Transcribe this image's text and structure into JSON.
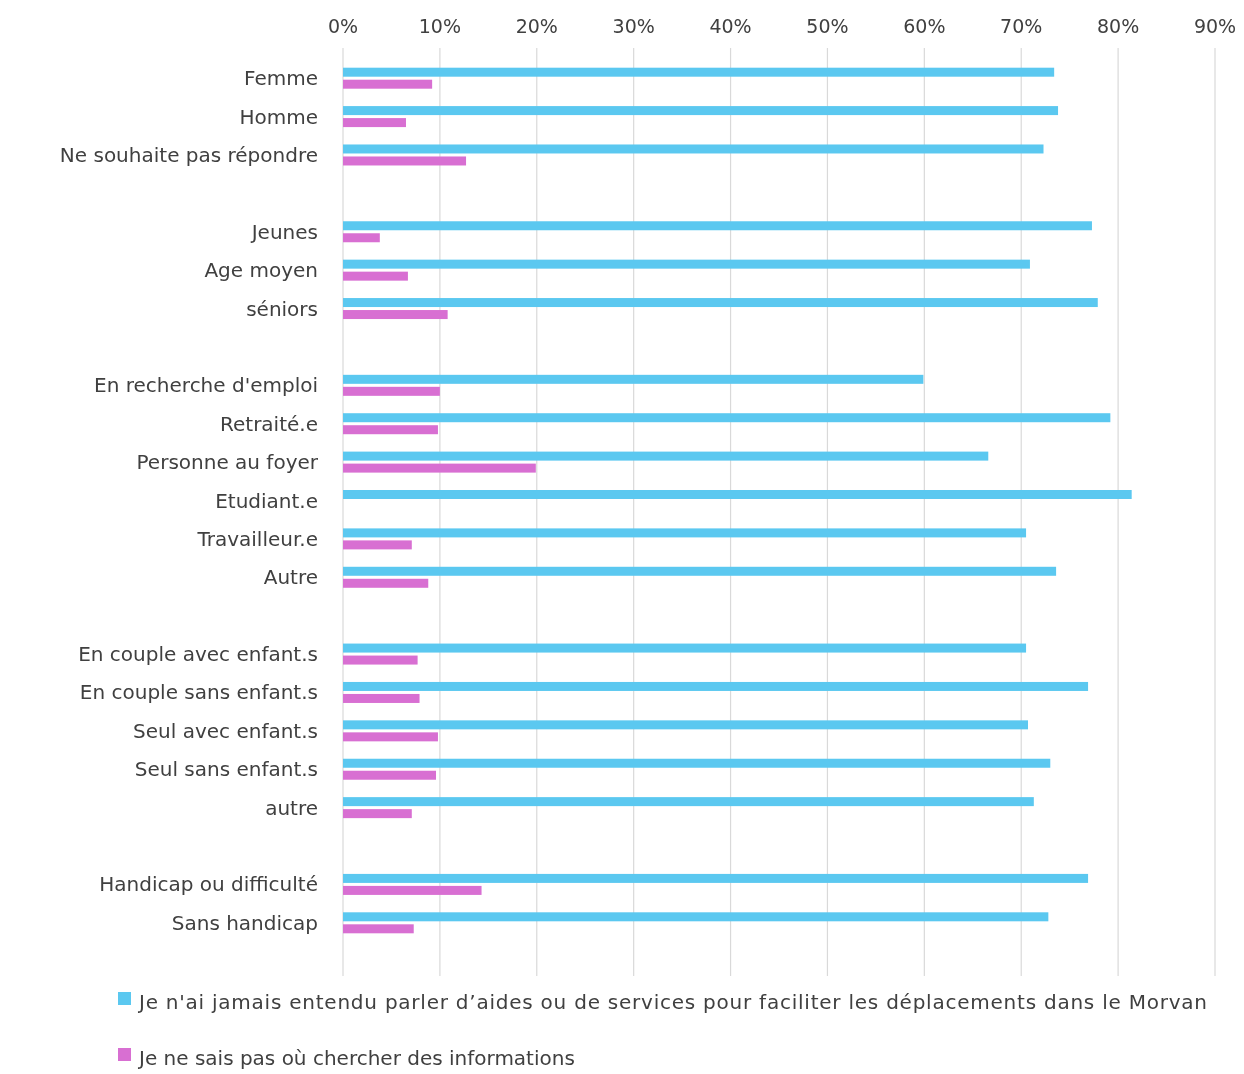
{
  "chart_data": {
    "type": "bar",
    "orientation": "horizontal",
    "categories": [
      "Femme",
      "Homme",
      "Ne souhaite pas répondre",
      null,
      "Jeunes",
      "Age moyen",
      "séniors",
      null,
      "En recherche d'emploi",
      "Retraité.e",
      "Personne au foyer",
      "Etudiant.e",
      "Travailleur.e",
      "Autre",
      null,
      "En couple avec enfant.s",
      "En couple sans enfant.s",
      "Seul avec enfant.s",
      "Seul sans enfant.s",
      "autre",
      null,
      "Handicap ou difficulté",
      "Sans handicap"
    ],
    "series": [
      {
        "name": "Je n'ai jamais entendu parler d’aides ou de services pour faciliter les déplacements dans le Morvan",
        "color": "#5bc8f0",
        "values": [
          73.4,
          73.8,
          72.3,
          null,
          77.3,
          70.9,
          77.9,
          null,
          59.9,
          79.2,
          66.6,
          81.4,
          70.5,
          73.6,
          null,
          70.5,
          76.9,
          70.7,
          73.0,
          71.3,
          null,
          76.9,
          72.8
        ]
      },
      {
        "name": "Je ne sais pas où chercher des informations",
        "color": "#d86fd2",
        "values": [
          9.2,
          6.5,
          12.7,
          null,
          3.8,
          6.7,
          10.8,
          null,
          10.0,
          9.8,
          19.9,
          0,
          7.1,
          8.8,
          null,
          7.7,
          7.9,
          9.8,
          9.6,
          7.1,
          null,
          14.3,
          7.3
        ]
      }
    ],
    "xlim": [
      0,
      90
    ],
    "xticks": [
      {
        "value": 0,
        "label": "0%"
      },
      {
        "value": 10,
        "label": "10%"
      },
      {
        "value": 20,
        "label": "20%"
      },
      {
        "value": 30,
        "label": "30%"
      },
      {
        "value": 40,
        "label": "40%"
      },
      {
        "value": 50,
        "label": "50%"
      },
      {
        "value": 60,
        "label": "60%"
      },
      {
        "value": 70,
        "label": "70%"
      },
      {
        "value": 80,
        "label": "80%"
      },
      {
        "value": 90,
        "label": "90%"
      }
    ],
    "grid": "x",
    "legend": "bottom"
  }
}
